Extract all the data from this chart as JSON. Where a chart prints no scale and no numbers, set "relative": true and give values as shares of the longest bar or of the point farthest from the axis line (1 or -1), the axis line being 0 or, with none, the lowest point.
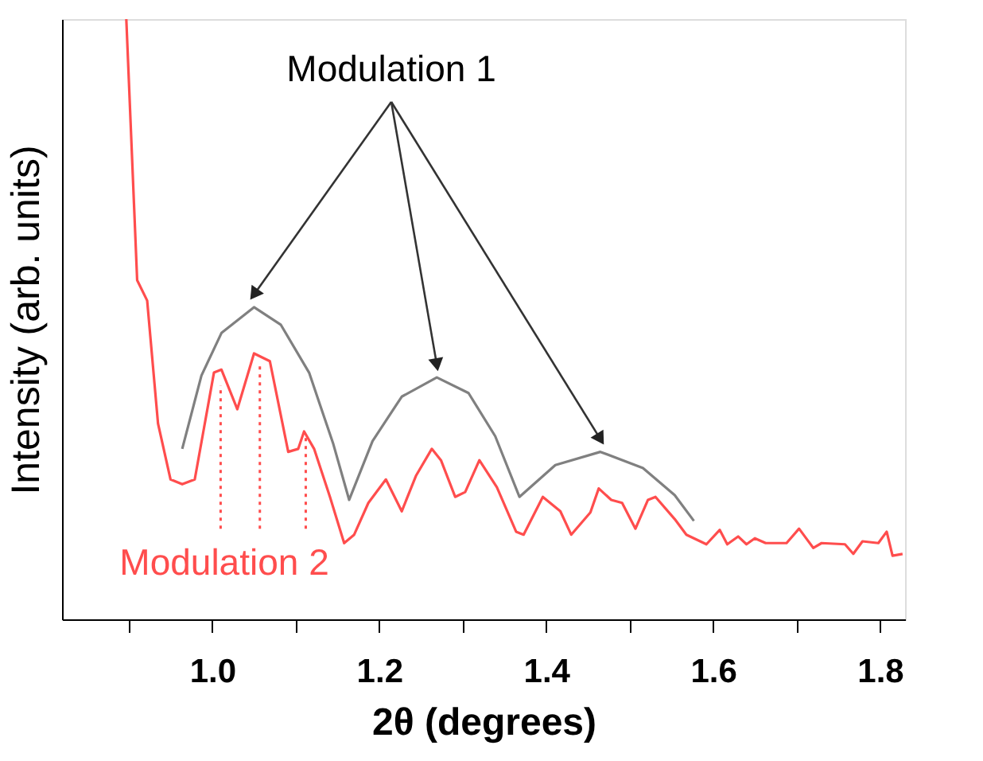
{
  "chart_data": {
    "type": "line",
    "relative": true,
    "xlabel": "2θ (degrees)",
    "ylabel": "Intensity (arb. units)",
    "xlim": [
      0.82,
      1.83
    ],
    "xticks": [
      {
        "value": 0.9,
        "label": null
      },
      {
        "value": 1.0,
        "label": "1.0"
      },
      {
        "value": 1.1,
        "label": null
      },
      1.2,
      {
        "value": 1.3,
        "label": null
      },
      1.4,
      {
        "value": 1.5,
        "label": null
      },
      1.6,
      {
        "value": 1.7,
        "label": null
      },
      1.8
    ],
    "grid": false,
    "marker": "none",
    "annotations": [
      "Modulation 1",
      "Modulation 2"
    ],
    "series": [
      {
        "color": "#ff4d4d",
        "line_style": "solid",
        "x": [
          0.897,
          0.91,
          0.922,
          0.935,
          0.95,
          0.964,
          0.979,
          1.002,
          1.011,
          1.03,
          1.05,
          1.069,
          1.091,
          1.103,
          1.11,
          1.122,
          1.141,
          1.158,
          1.17,
          1.187,
          1.208,
          1.227,
          1.244,
          1.263,
          1.274,
          1.291,
          1.303,
          1.32,
          1.341,
          1.364,
          1.373,
          1.396,
          1.417,
          1.43,
          1.453,
          1.463,
          1.478,
          1.491,
          1.507,
          1.522,
          1.531,
          1.554,
          1.568,
          1.592,
          1.608,
          1.617,
          1.63,
          1.64,
          1.65,
          1.663,
          1.688,
          1.703,
          1.72,
          1.73,
          1.758,
          1.768,
          1.779,
          1.798,
          1.808,
          1.815,
          1.827
        ],
        "values": [
          1.0,
          0.565,
          0.531,
          0.326,
          0.233,
          0.225,
          0.233,
          0.411,
          0.416,
          0.35,
          0.443,
          0.43,
          0.279,
          0.284,
          0.313,
          0.284,
          0.204,
          0.127,
          0.141,
          0.194,
          0.233,
          0.18,
          0.239,
          0.284,
          0.265,
          0.204,
          0.212,
          0.265,
          0.22,
          0.146,
          0.141,
          0.204,
          0.18,
          0.141,
          0.178,
          0.218,
          0.199,
          0.194,
          0.151,
          0.199,
          0.204,
          0.167,
          0.141,
          0.125,
          0.149,
          0.125,
          0.138,
          0.125,
          0.135,
          0.127,
          0.127,
          0.151,
          0.119,
          0.127,
          0.125,
          0.109,
          0.13,
          0.127,
          0.146,
          0.106,
          0.109
        ]
      },
      {
        "color": "#808080",
        "line_style": "solid",
        "x": [
          0.964,
          0.987,
          1.011,
          1.05,
          1.082,
          1.116,
          1.145,
          1.164,
          1.192,
          1.227,
          1.269,
          1.307,
          1.339,
          1.368,
          1.411,
          1.465,
          1.516,
          1.554,
          1.577
        ],
        "values": [
          0.284,
          0.406,
          0.477,
          0.52,
          0.491,
          0.411,
          0.292,
          0.199,
          0.297,
          0.371,
          0.403,
          0.377,
          0.305,
          0.204,
          0.257,
          0.279,
          0.252,
          0.207,
          0.164
        ]
      },
      {
        "color": "#ff4d4d",
        "line_style": "dotted",
        "x": [
          1.01,
          1.01
        ],
        "values": [
          0.151,
          0.39
        ]
      },
      {
        "color": "#ff4d4d",
        "line_style": "dotted",
        "x": [
          1.057,
          1.057
        ],
        "values": [
          0.151,
          0.424
        ]
      },
      {
        "color": "#ff4d4d",
        "line_style": "dotted",
        "x": [
          1.112,
          1.112
        ],
        "values": [
          0.151,
          0.31
        ]
      }
    ]
  }
}
